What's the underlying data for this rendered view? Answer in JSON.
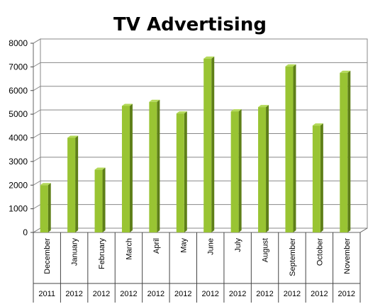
{
  "chart_data": {
    "type": "bar",
    "title": "TV Advertising",
    "xlabel": "",
    "ylabel": "",
    "categories": [
      {
        "month": "December",
        "year": "2011"
      },
      {
        "month": "January",
        "year": "2012"
      },
      {
        "month": "February",
        "year": "2012"
      },
      {
        "month": "March",
        "year": "2012"
      },
      {
        "month": "April",
        "year": "2012"
      },
      {
        "month": "May",
        "year": "2012"
      },
      {
        "month": "June",
        "year": "2012"
      },
      {
        "month": "July",
        "year": "2012"
      },
      {
        "month": "August",
        "year": "2012"
      },
      {
        "month": "September",
        "year": "2012"
      },
      {
        "month": "October",
        "year": "2012"
      },
      {
        "month": "November",
        "year": "2012"
      }
    ],
    "values": [
      2000,
      4000,
      2650,
      5350,
      5520,
      5030,
      7350,
      5120,
      5300,
      7020,
      4520,
      6750
    ],
    "y_ticks": [
      "0",
      "1000",
      "2000",
      "3000",
      "4000",
      "5000",
      "6000",
      "7000",
      "8000"
    ],
    "ylim": [
      0,
      8000
    ],
    "grid": true,
    "legend": "none",
    "colors": {
      "bar_front": "#99c433",
      "bar_side": "#5e7f18",
      "bar_top": "#b4d95a",
      "grid": "#888888",
      "wall": "#ffffff"
    }
  }
}
